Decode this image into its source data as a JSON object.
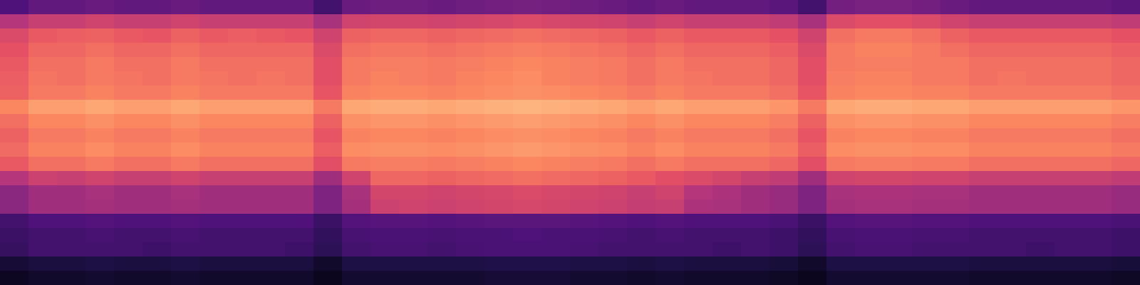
{
  "chart_data": {
    "type": "heatmap",
    "color": "magma",
    "zlim": [
      0,
      100
    ],
    "tick_labels": false,
    "cells": [
      [
        25,
        30,
        30,
        32,
        30,
        30,
        32,
        30,
        30,
        30,
        30,
        22,
        32,
        33,
        33,
        32,
        33,
        34,
        35,
        34,
        33,
        32,
        30,
        32,
        30,
        30,
        30,
        28,
        22,
        34,
        36,
        36,
        34,
        32,
        30,
        30,
        30,
        30,
        30,
        28
      ],
      [
        50,
        55,
        55,
        57,
        55,
        55,
        57,
        55,
        55,
        55,
        55,
        47,
        57,
        58,
        58,
        57,
        58,
        59,
        60,
        59,
        58,
        57,
        55,
        57,
        55,
        55,
        55,
        53,
        47,
        60,
        62,
        62,
        60,
        57,
        55,
        55,
        55,
        55,
        55,
        53
      ],
      [
        60,
        65,
        66,
        67,
        65,
        64,
        67,
        65,
        66,
        65,
        64,
        57,
        67,
        68,
        68,
        67,
        68,
        69,
        70,
        69,
        68,
        67,
        65,
        67,
        65,
        65,
        65,
        63,
        57,
        70,
        72,
        72,
        70,
        67,
        65,
        65,
        65,
        65,
        65,
        63
      ],
      [
        63,
        68,
        68,
        70,
        68,
        68,
        70,
        68,
        68,
        68,
        68,
        60,
        70,
        71,
        71,
        70,
        71,
        72,
        73,
        72,
        71,
        70,
        68,
        70,
        68,
        68,
        68,
        66,
        60,
        72,
        74,
        74,
        72,
        70,
        68,
        68,
        68,
        68,
        68,
        66
      ],
      [
        65,
        70,
        70,
        72,
        70,
        70,
        72,
        70,
        70,
        70,
        70,
        62,
        72,
        73,
        73,
        72,
        73,
        74,
        75,
        74,
        73,
        72,
        70,
        72,
        70,
        70,
        70,
        68,
        62,
        72,
        73,
        73,
        72,
        72,
        70,
        70,
        70,
        70,
        70,
        68
      ],
      [
        66,
        71,
        70,
        72,
        71,
        70,
        72,
        71,
        70,
        71,
        70,
        62,
        72,
        74,
        73,
        72,
        74,
        75,
        76,
        74,
        73,
        72,
        70,
        72,
        71,
        70,
        70,
        68,
        62,
        73,
        74,
        74,
        72,
        72,
        70,
        71,
        70,
        70,
        70,
        68
      ],
      [
        67,
        72,
        72,
        74,
        72,
        72,
        74,
        72,
        72,
        72,
        72,
        64,
        74,
        75,
        75,
        74,
        75,
        76,
        77,
        76,
        75,
        74,
        72,
        74,
        72,
        72,
        72,
        70,
        64,
        74,
        75,
        75,
        74,
        74,
        72,
        72,
        72,
        72,
        72,
        70
      ],
      [
        75,
        80,
        80,
        82,
        80,
        80,
        82,
        80,
        80,
        80,
        80,
        72,
        82,
        83,
        83,
        82,
        83,
        84,
        85,
        84,
        83,
        82,
        80,
        82,
        80,
        80,
        80,
        78,
        72,
        82,
        83,
        83,
        82,
        82,
        80,
        80,
        80,
        80,
        80,
        78
      ],
      [
        70,
        75,
        75,
        77,
        75,
        75,
        77,
        75,
        75,
        75,
        75,
        67,
        77,
        78,
        78,
        77,
        78,
        79,
        80,
        79,
        78,
        77,
        75,
        77,
        75,
        75,
        75,
        73,
        67,
        77,
        78,
        78,
        77,
        77,
        75,
        75,
        75,
        75,
        75,
        73
      ],
      [
        67,
        72,
        72,
        74,
        72,
        72,
        74,
        72,
        72,
        72,
        72,
        64,
        74,
        75,
        75,
        74,
        75,
        76,
        77,
        76,
        75,
        74,
        72,
        74,
        72,
        72,
        72,
        70,
        64,
        74,
        75,
        75,
        74,
        74,
        72,
        72,
        72,
        72,
        72,
        70
      ],
      [
        69,
        74,
        74,
        76,
        74,
        74,
        76,
        74,
        74,
        74,
        74,
        66,
        76,
        77,
        77,
        76,
        77,
        78,
        79,
        78,
        77,
        76,
        74,
        76,
        74,
        74,
        74,
        72,
        66,
        76,
        77,
        77,
        76,
        76,
        74,
        74,
        74,
        74,
        74,
        72
      ],
      [
        65,
        70,
        70,
        72,
        70,
        70,
        72,
        70,
        70,
        70,
        70,
        62,
        72,
        73,
        73,
        72,
        73,
        74,
        75,
        74,
        73,
        72,
        70,
        72,
        70,
        70,
        70,
        68,
        62,
        72,
        73,
        73,
        72,
        72,
        70,
        70,
        70,
        70,
        70,
        68
      ],
      [
        50,
        56,
        55,
        57,
        55,
        55,
        57,
        55,
        55,
        55,
        55,
        45,
        57,
        68,
        68,
        67,
        68,
        69,
        70,
        69,
        68,
        67,
        65,
        62,
        60,
        58,
        55,
        53,
        45,
        57,
        58,
        58,
        57,
        57,
        55,
        55,
        55,
        55,
        55,
        53
      ],
      [
        40,
        45,
        45,
        47,
        45,
        45,
        47,
        45,
        45,
        45,
        45,
        37,
        47,
        58,
        58,
        57,
        58,
        59,
        60,
        59,
        58,
        57,
        55,
        57,
        50,
        48,
        45,
        43,
        37,
        47,
        48,
        48,
        47,
        47,
        45,
        45,
        45,
        45,
        45,
        43
      ],
      [
        40,
        45,
        45,
        46,
        45,
        45,
        46,
        45,
        45,
        45,
        45,
        37,
        46,
        56,
        57,
        56,
        57,
        58,
        59,
        58,
        57,
        56,
        54,
        55,
        48,
        47,
        45,
        43,
        37,
        46,
        47,
        47,
        46,
        46,
        45,
        45,
        45,
        45,
        45,
        43
      ],
      [
        22,
        25,
        25,
        26,
        25,
        25,
        26,
        25,
        25,
        25,
        25,
        20,
        26,
        27,
        27,
        26,
        27,
        28,
        28,
        28,
        27,
        26,
        25,
        26,
        25,
        25,
        25,
        24,
        20,
        26,
        27,
        27,
        26,
        26,
        25,
        25,
        25,
        25,
        25,
        24
      ],
      [
        20,
        22,
        22,
        23,
        22,
        22,
        23,
        22,
        22,
        22,
        22,
        18,
        23,
        24,
        24,
        23,
        24,
        24,
        25,
        24,
        24,
        23,
        22,
        23,
        22,
        22,
        22,
        21,
        18,
        23,
        24,
        24,
        23,
        23,
        22,
        22,
        22,
        22,
        22,
        21
      ],
      [
        19,
        22,
        22,
        22,
        22,
        21,
        22,
        22,
        22,
        22,
        21,
        17,
        22,
        23,
        23,
        22,
        23,
        24,
        24,
        24,
        23,
        22,
        22,
        22,
        22,
        21,
        22,
        21,
        17,
        22,
        23,
        23,
        22,
        22,
        22,
        22,
        21,
        22,
        22,
        21
      ],
      [
        10,
        12,
        12,
        13,
        12,
        12,
        13,
        12,
        12,
        12,
        12,
        8,
        13,
        13,
        13,
        13,
        13,
        14,
        14,
        14,
        13,
        13,
        12,
        13,
        12,
        12,
        12,
        11,
        8,
        13,
        13,
        13,
        13,
        13,
        12,
        12,
        12,
        12,
        12,
        11
      ],
      [
        6,
        8,
        8,
        9,
        8,
        8,
        9,
        8,
        8,
        8,
        8,
        5,
        9,
        9,
        9,
        9,
        9,
        10,
        10,
        10,
        9,
        9,
        8,
        9,
        8,
        8,
        8,
        7,
        5,
        9,
        9,
        9,
        9,
        9,
        8,
        8,
        8,
        8,
        8,
        7
      ]
    ]
  }
}
